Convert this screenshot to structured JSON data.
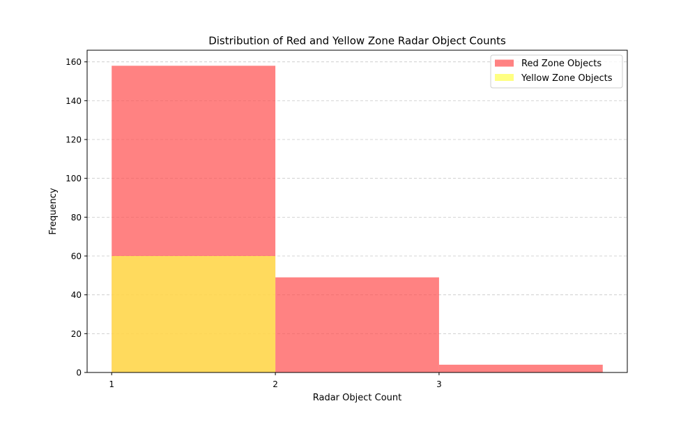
{
  "chart_data": {
    "type": "bar",
    "title": "Distribution of Red and Yellow Zone Radar Object Counts",
    "xlabel": "Radar Object Count",
    "ylabel": "Frequency",
    "xlim": [
      0.85,
      4.15
    ],
    "ylim": [
      0,
      166
    ],
    "xticks": [
      1,
      2,
      3
    ],
    "yticks": [
      0,
      20,
      40,
      60,
      80,
      100,
      120,
      140,
      160
    ],
    "grid": "y dashed",
    "legend_position": "top-right",
    "series": [
      {
        "name": "Red Zone Objects",
        "color": "#ff4d4d",
        "bins": [
          {
            "x0": 1,
            "x1": 2,
            "value": 158
          },
          {
            "x0": 2,
            "x1": 3,
            "value": 49
          },
          {
            "x0": 3,
            "x1": 4,
            "value": 4
          }
        ]
      },
      {
        "name": "Yellow Zone Objects",
        "color": "#ffff4d",
        "bins": [
          {
            "x0": 1,
            "x1": 2,
            "value": 60
          }
        ]
      }
    ]
  }
}
